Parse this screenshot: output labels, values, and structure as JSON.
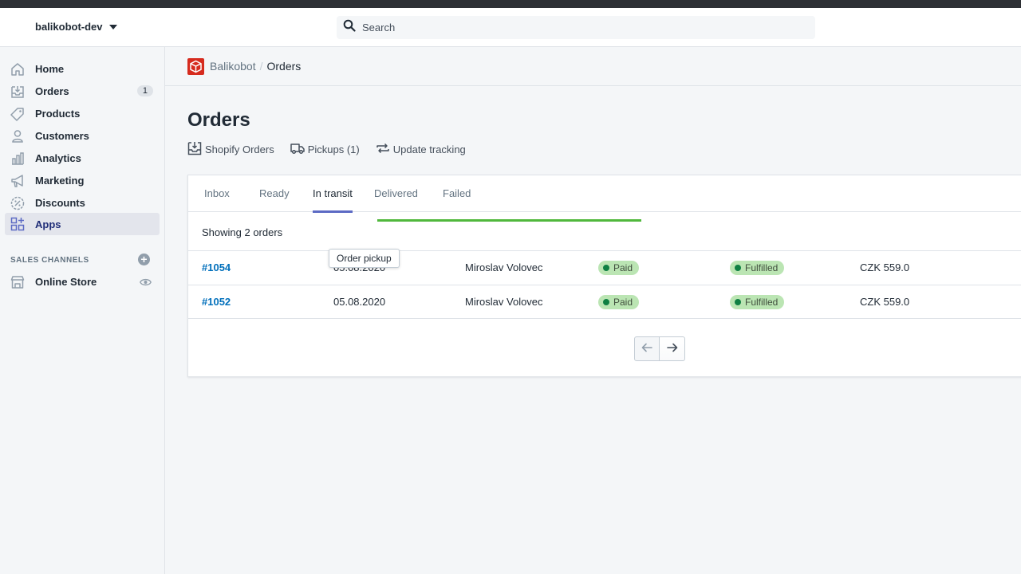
{
  "topbar": {
    "store_name": "balikobot-dev",
    "search_placeholder": "Search"
  },
  "sidebar": {
    "items": [
      {
        "label": "Home",
        "icon": "home-icon"
      },
      {
        "label": "Orders",
        "icon": "orders-icon",
        "badge": "1"
      },
      {
        "label": "Products",
        "icon": "tag-icon"
      },
      {
        "label": "Customers",
        "icon": "person-icon"
      },
      {
        "label": "Analytics",
        "icon": "bar-chart-icon"
      },
      {
        "label": "Marketing",
        "icon": "megaphone-icon"
      },
      {
        "label": "Discounts",
        "icon": "discount-icon"
      },
      {
        "label": "Apps",
        "icon": "apps-icon",
        "active": true
      }
    ],
    "sales_channels_label": "SALES CHANNELS",
    "online_store_label": "Online Store"
  },
  "breadcrumb": {
    "app": "Balikobot",
    "separator": "/",
    "current": "Orders"
  },
  "page": {
    "title": "Orders",
    "actions": [
      {
        "label": "Shopify Orders",
        "icon": "inbox-icon"
      },
      {
        "label": "Pickups (1)",
        "icon": "truck-icon"
      },
      {
        "label": "Update tracking",
        "icon": "refresh-icon"
      }
    ]
  },
  "tabs": [
    {
      "label": "Inbox"
    },
    {
      "label": "Ready"
    },
    {
      "label": "In transit",
      "active": true
    },
    {
      "label": "Delivered"
    },
    {
      "label": "Failed"
    }
  ],
  "loading_progress": 1.0,
  "showing_text": "Showing 2 orders",
  "orders": [
    {
      "id": "#1054",
      "date": "05.08.2020",
      "customer": "Miroslav Volovec",
      "payment": "Paid",
      "fulfillment": "Fulfilled",
      "total": "CZK 559.0"
    },
    {
      "id": "#1052",
      "date": "05.08.2020",
      "customer": "Miroslav Volovec",
      "payment": "Paid",
      "fulfillment": "Fulfilled",
      "total": "CZK 559.0"
    }
  ],
  "tooltip": "Order pickup",
  "colors": {
    "accent": "#5c6ac4",
    "link": "#006fbb",
    "success_badge": "#bbe5b3",
    "progress": "#50b83c",
    "brand_red": "#d62b1e"
  }
}
